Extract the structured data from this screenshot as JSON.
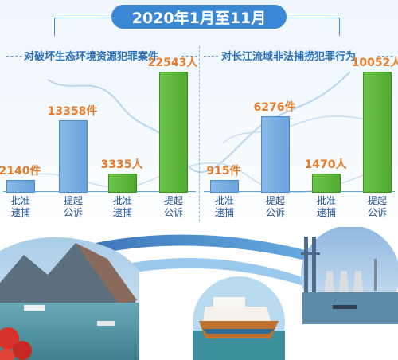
{
  "title": "2020年1月至11月",
  "sections": {
    "left": {
      "title": "对破坏生态环境资源犯罪案件"
    },
    "right": {
      "title": "对长江流域非法捕捞犯罪行为"
    }
  },
  "categories": {
    "approve_arrest_line1": "批准",
    "approve_arrest_line2": "逮捕",
    "prosecute_line1": "提起",
    "prosecute_line2": "公诉"
  },
  "chart_data": [
    {
      "type": "bar",
      "title": "对破坏生态环境资源犯罪案件",
      "categories": [
        "批准逮捕",
        "提起公诉"
      ],
      "series": [
        {
          "name": "件",
          "values": [
            2140,
            13358
          ]
        },
        {
          "name": "人",
          "values": [
            3335,
            22543
          ]
        }
      ],
      "labels": {
        "b1": "2140件",
        "b2": "13358件",
        "b3": "3335人",
        "b4": "22543人"
      },
      "colors": {
        "件": "#7ab0e4",
        "人": "#5cb83a"
      }
    },
    {
      "type": "bar",
      "title": "对长江流域非法捕捞犯罪行为",
      "categories": [
        "批准逮捕",
        "提起公诉"
      ],
      "series": [
        {
          "name": "件",
          "values": [
            915,
            6276
          ]
        },
        {
          "name": "人",
          "values": [
            1470,
            10052
          ]
        }
      ],
      "labels": {
        "b1": "915件",
        "b2": "6276件",
        "b3": "1470人",
        "b4": "10052人"
      },
      "colors": {
        "件": "#7ab0e4",
        "人": "#5cb83a"
      }
    }
  ]
}
